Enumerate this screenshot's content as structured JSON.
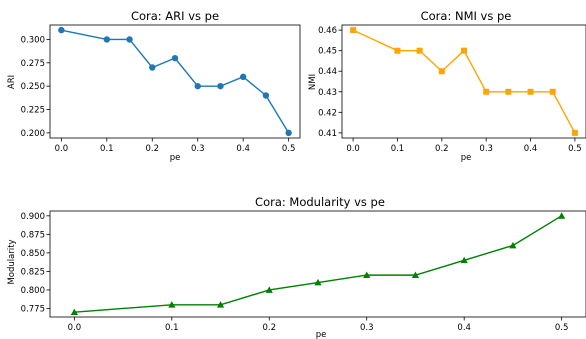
{
  "chart_data": [
    {
      "type": "line",
      "title": "Cora: ARI vs pe",
      "xlabel": "pe",
      "ylabel": "ARI",
      "x": [
        0.0,
        0.1,
        0.15,
        0.2,
        0.25,
        0.3,
        0.35,
        0.4,
        0.45,
        0.5
      ],
      "series": [
        {
          "values": [
            0.31,
            0.3,
            0.3,
            0.27,
            0.28,
            0.25,
            0.25,
            0.26,
            0.24,
            0.2
          ],
          "color": "#1f77b4",
          "marker": "circle"
        }
      ],
      "xticks": [
        "0.0",
        "0.1",
        "0.2",
        "0.3",
        "0.4",
        "0.5"
      ],
      "yticks": [
        "0.200",
        "0.225",
        "0.250",
        "0.275",
        "0.300"
      ],
      "xlim": [
        -0.025,
        0.525
      ],
      "ylim": [
        0.1945,
        0.3155
      ],
      "grid": false
    },
    {
      "type": "line",
      "title": "Cora: NMI vs pe",
      "xlabel": "pe",
      "ylabel": "NMI",
      "x": [
        0.0,
        0.1,
        0.15,
        0.2,
        0.25,
        0.3,
        0.35,
        0.4,
        0.45,
        0.5
      ],
      "series": [
        {
          "values": [
            0.46,
            0.45,
            0.45,
            0.44,
            0.45,
            0.43,
            0.43,
            0.43,
            0.43,
            0.41
          ],
          "color": "#ffa500",
          "marker": "square"
        }
      ],
      "xticks": [
        "0.0",
        "0.1",
        "0.2",
        "0.3",
        "0.4",
        "0.5"
      ],
      "yticks": [
        "0.41",
        "0.42",
        "0.43",
        "0.44",
        "0.45",
        "0.46"
      ],
      "xlim": [
        -0.025,
        0.525
      ],
      "ylim": [
        0.4075,
        0.4625
      ],
      "grid": false
    },
    {
      "type": "line",
      "title": "Cora: Modularity vs pe",
      "xlabel": "pe",
      "ylabel": "Modularity",
      "x": [
        0.0,
        0.1,
        0.15,
        0.2,
        0.25,
        0.3,
        0.35,
        0.4,
        0.45,
        0.5
      ],
      "series": [
        {
          "values": [
            0.77,
            0.78,
            0.78,
            0.8,
            0.81,
            0.82,
            0.82,
            0.84,
            0.86,
            0.9
          ],
          "color": "#008000",
          "marker": "triangle"
        }
      ],
      "xticks": [
        "0.0",
        "0.1",
        "0.2",
        "0.3",
        "0.4",
        "0.5"
      ],
      "yticks": [
        "0.775",
        "0.800",
        "0.825",
        "0.850",
        "0.875",
        "0.900"
      ],
      "xlim": [
        -0.025,
        0.525
      ],
      "ylim": [
        0.7635,
        0.9065
      ],
      "grid": false
    }
  ]
}
